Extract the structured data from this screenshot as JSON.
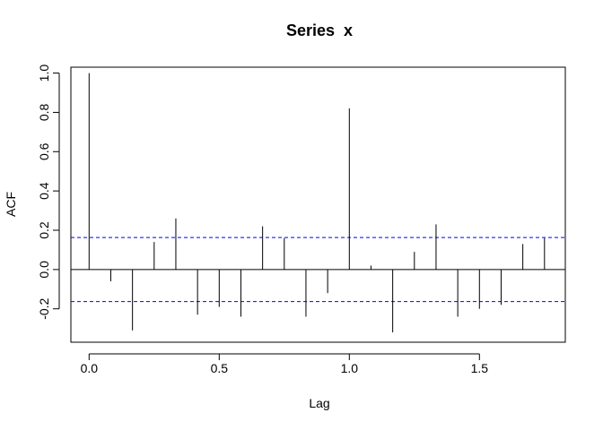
{
  "chart_data": {
    "type": "bar",
    "title": "Series  x",
    "xlabel": "Lag",
    "ylabel": "ACF",
    "xlim": [
      -0.07,
      1.83
    ],
    "ylim": [
      -0.37,
      1.03
    ],
    "x_ticks": [
      0.0,
      0.5,
      1.0,
      1.5
    ],
    "x_tick_labels": [
      "0.0",
      "0.5",
      "1.0",
      "1.5"
    ],
    "y_ticks": [
      -0.2,
      0.0,
      0.2,
      0.4,
      0.6,
      0.8,
      1.0
    ],
    "y_tick_labels": [
      "-0.2",
      "0.0",
      "0.2",
      "0.4",
      "0.6",
      "0.8",
      "1.0"
    ],
    "lags": [
      0.0,
      0.0833,
      0.1667,
      0.25,
      0.3333,
      0.4167,
      0.5,
      0.5833,
      0.6667,
      0.75,
      0.8333,
      0.9167,
      1.0,
      1.0833,
      1.1667,
      1.25,
      1.3333,
      1.4167,
      1.5,
      1.5833,
      1.6667,
      1.75
    ],
    "acf": [
      1.0,
      -0.06,
      -0.31,
      0.14,
      0.26,
      -0.23,
      -0.19,
      -0.24,
      0.22,
      0.16,
      -0.24,
      -0.12,
      0.82,
      0.02,
      -0.32,
      0.09,
      0.23,
      -0.24,
      -0.2,
      -0.18,
      0.13,
      0.16
    ],
    "confidence_bound": 0.163,
    "grid": false,
    "colors": {
      "bars": "#000000",
      "confidence": "#0000ff",
      "frame": "#000000"
    }
  }
}
